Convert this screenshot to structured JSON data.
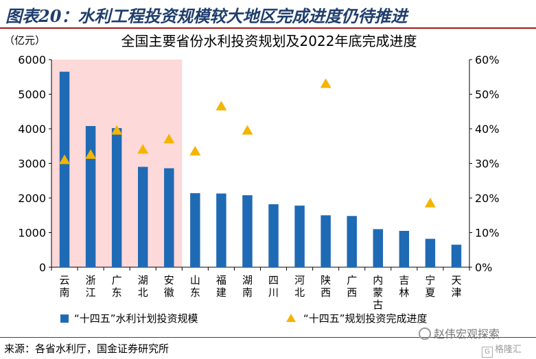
{
  "figure_title": "图表20：水利工程投资规模较大地区完成进度仍待推进",
  "source_note": "来源：各省水利厅，国金证券研究所",
  "watermark": "赵伟宏观探索",
  "watermark_sub": "格隆汇",
  "colors": {
    "bar": "#1f6ab5",
    "marker": "#f5b400",
    "highlight": "#fdd9d9",
    "title": "#1f3e6d",
    "rule": "#9b1c1c"
  },
  "chart_data": {
    "type": "bar",
    "title": "全国主要省份水利投资规划及2022年底完成进度",
    "ylabel_left": "（亿元）",
    "ylim_left": [
      0,
      6000
    ],
    "yticks_left": [
      "0",
      "1000",
      "2000",
      "3000",
      "4000",
      "5000",
      "6000"
    ],
    "ylim_right": [
      0,
      60
    ],
    "yticks_right": [
      "0%",
      "10%",
      "20%",
      "30%",
      "40%",
      "50%",
      "60%"
    ],
    "categories": [
      "云南",
      "浙江",
      "广东",
      "湖北",
      "安徽",
      "山东",
      "福建",
      "湖南",
      "四川",
      "河北",
      "陕西",
      "广西",
      "内蒙古",
      "吉林",
      "宁夏",
      "天津"
    ],
    "highlight_categories": [
      "云南",
      "浙江",
      "广东",
      "湖北",
      "安徽"
    ],
    "series": [
      {
        "name": "“十四五”水利计划投资规模",
        "axis": "left",
        "kind": "bar",
        "values": [
          5650,
          4080,
          4020,
          2900,
          2860,
          2140,
          2130,
          2080,
          1820,
          1780,
          1500,
          1480,
          1100,
          1050,
          820,
          650
        ]
      },
      {
        "name": "“十四五”规划投资完成进度",
        "axis": "right",
        "kind": "triangle",
        "values": [
          31,
          32.5,
          39.5,
          34,
          37,
          33.5,
          46.5,
          39.5,
          null,
          null,
          53,
          null,
          null,
          null,
          18.5,
          null
        ]
      }
    ],
    "legend_position": "bottom"
  }
}
